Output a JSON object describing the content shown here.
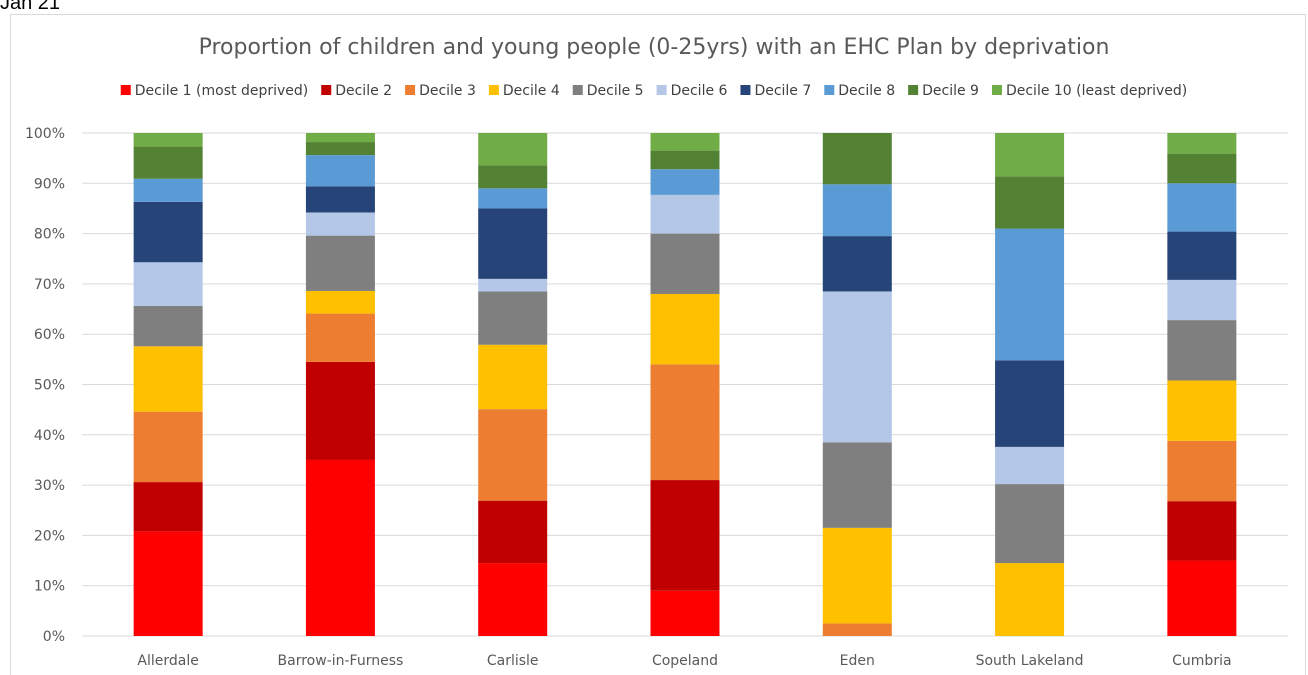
{
  "header_note": "Jan 21",
  "chart_data": {
    "type": "bar",
    "stacked": true,
    "percent_stacked": true,
    "title": "Proportion of children and young people (0-25yrs) with an EHC Plan by deprivation",
    "xlabel": "",
    "ylabel": "",
    "ylim": [
      0,
      100
    ],
    "y_ticks": [
      "0%",
      "10%",
      "20%",
      "30%",
      "40%",
      "50%",
      "60%",
      "70%",
      "80%",
      "90%",
      "100%"
    ],
    "grid": true,
    "legend_position": "top",
    "categories": [
      "Allerdale",
      "Barrow-in-Furness",
      "Carlisle",
      "Copeland",
      "Eden",
      "South Lakeland",
      "Cumbria"
    ],
    "series": [
      {
        "name": "Decile 1 (most deprived)",
        "color": "#ff0000",
        "values": [
          20.8,
          35.0,
          14.5,
          9.0,
          0,
          0,
          15.0
        ]
      },
      {
        "name": "Decile 2",
        "color": "#c00000",
        "values": [
          9.8,
          19.5,
          12.4,
          22.0,
          0,
          0,
          11.8
        ]
      },
      {
        "name": "Decile 3",
        "color": "#ed7d31",
        "values": [
          14.0,
          9.6,
          18.2,
          23.0,
          2.5,
          0,
          12.0
        ]
      },
      {
        "name": "Decile 4",
        "color": "#ffc000",
        "values": [
          13.0,
          4.5,
          12.8,
          14.0,
          19.0,
          14.5,
          12.0
        ]
      },
      {
        "name": "Decile 5",
        "color": "#7f7f7f",
        "values": [
          8.0,
          11.0,
          10.6,
          12.0,
          17.0,
          15.7,
          12.0
        ]
      },
      {
        "name": "Decile 6",
        "color": "#b4c7e7",
        "values": [
          8.7,
          4.6,
          2.5,
          7.7,
          30.0,
          7.4,
          8.0
        ]
      },
      {
        "name": "Decile 7",
        "color": "#264478",
        "values": [
          12.0,
          5.2,
          14.0,
          0,
          11.0,
          17.2,
          9.6
        ]
      },
      {
        "name": "Decile 8",
        "color": "#5b9bd5",
        "values": [
          4.6,
          6.2,
          4.0,
          5.1,
          10.3,
          26.2,
          9.6
        ]
      },
      {
        "name": "Decile 9",
        "color": "#548235",
        "values": [
          6.4,
          2.6,
          4.6,
          3.7,
          10.2,
          10.4,
          5.9
        ]
      },
      {
        "name": "Decile 10 (least deprived)",
        "color": "#70ad47",
        "values": [
          2.7,
          1.8,
          6.4,
          3.5,
          0,
          8.6,
          4.1
        ]
      }
    ]
  }
}
